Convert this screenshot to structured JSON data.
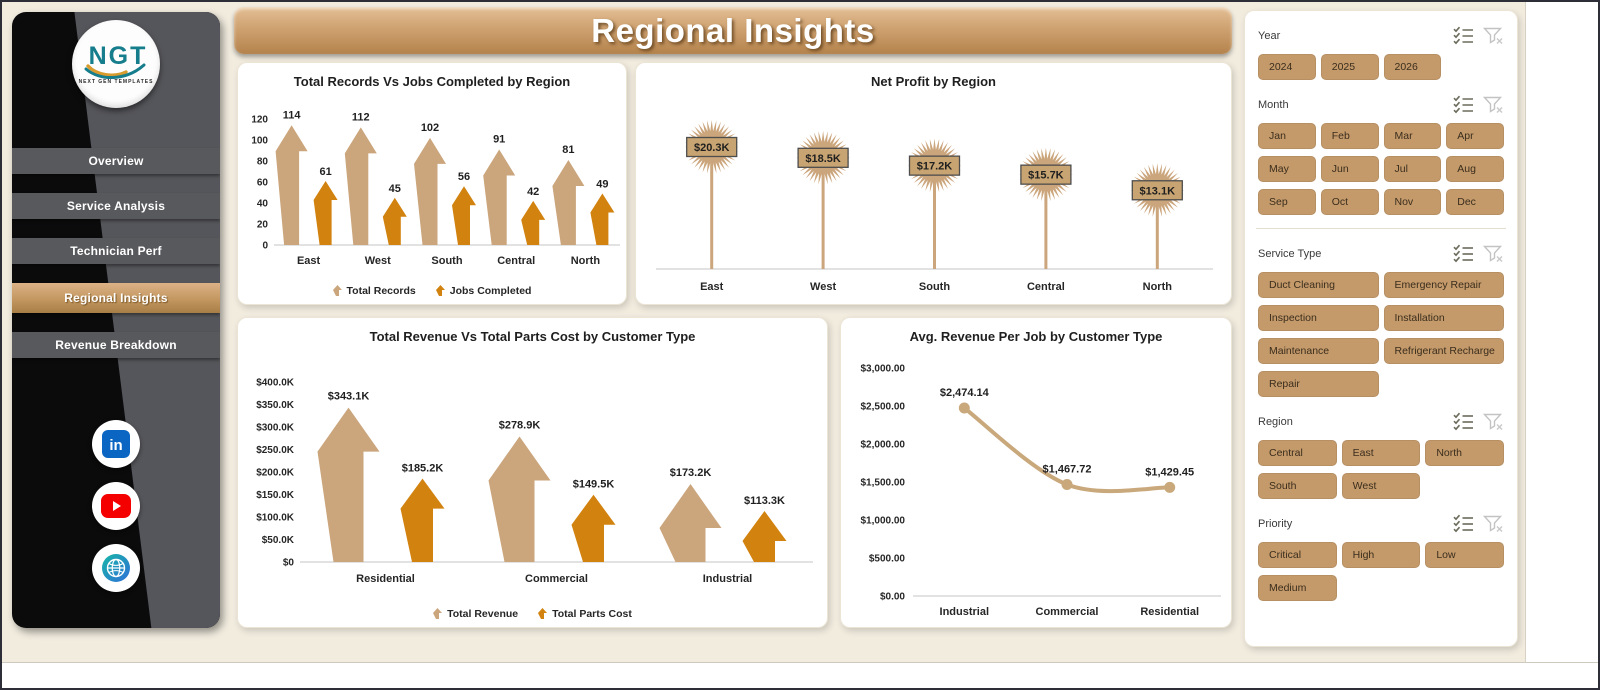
{
  "header": {
    "title": "Regional Insights"
  },
  "sidebar": {
    "logo": {
      "text": "NGT",
      "subtext": "NEXT GEN TEMPLATES"
    },
    "items": [
      {
        "label": "Overview",
        "active": false
      },
      {
        "label": "Service Analysis",
        "active": false
      },
      {
        "label": "Technician Perf",
        "active": false
      },
      {
        "label": "Regional Insights",
        "active": true
      },
      {
        "label": "Revenue Breakdown",
        "active": false
      }
    ],
    "social_icons": [
      "linkedin-icon",
      "youtube-icon",
      "globe-icon"
    ]
  },
  "colors": {
    "tan": "#CBA57C",
    "orange": "#D2820E",
    "accent_button": "#C49A6B",
    "page_bg": "#F2ECDF",
    "line": "#C9A87C"
  },
  "chart_data": [
    {
      "type": "bar",
      "title": "Total Records Vs Jobs Completed by Region",
      "categories": [
        "East",
        "West",
        "South",
        "Central",
        "North"
      ],
      "series": [
        {
          "name": "Total Records",
          "color": "#CBA57C",
          "values": [
            114,
            112,
            102,
            91,
            81
          ]
        },
        {
          "name": "Jobs Completed",
          "color": "#D2820E",
          "values": [
            61,
            45,
            56,
            42,
            49
          ]
        }
      ],
      "ylim": [
        0,
        120
      ],
      "yticks": [
        "120",
        "100",
        "80",
        "60",
        "40",
        "20",
        "0"
      ],
      "grid": false,
      "legend_position": "bottom",
      "marker_style": "upward-arrow"
    },
    {
      "type": "bar",
      "title": "Net Profit by Region",
      "categories": [
        "East",
        "West",
        "South",
        "Central",
        "North"
      ],
      "values": [
        20300,
        18500,
        17200,
        15700,
        13100
      ],
      "labels": [
        "$20.3K",
        "$18.5K",
        "$17.2K",
        "$15.7K",
        "$13.1K"
      ],
      "ylim": [
        0,
        24000
      ],
      "grid": false,
      "marker_style": "starburst-lollipop",
      "color": "#CBA57C"
    },
    {
      "type": "bar",
      "title": "Total Revenue Vs Total Parts Cost by Customer Type",
      "categories": [
        "Residential",
        "Commercial",
        "Industrial"
      ],
      "series": [
        {
          "name": "Total Revenue",
          "color": "#CBA57C",
          "values": [
            343100,
            278900,
            173200
          ],
          "labels": [
            "$343.1K",
            "$278.9K",
            "$173.2K"
          ]
        },
        {
          "name": "Total Parts Cost",
          "color": "#D2820E",
          "values": [
            185200,
            149500,
            113300
          ],
          "labels": [
            "$185.2K",
            "$149.5K",
            "$113.3K"
          ]
        }
      ],
      "ylim": [
        0,
        400000
      ],
      "yticks": [
        "$400.0K",
        "$350.0K",
        "$300.0K",
        "$250.0K",
        "$200.0K",
        "$150.0K",
        "$100.0K",
        "$50.0K",
        "$0"
      ],
      "grid": false,
      "legend_position": "bottom",
      "marker_style": "upward-arrow"
    },
    {
      "type": "line",
      "title": "Avg. Revenue Per Job by Customer Type",
      "categories": [
        "Industrial",
        "Commercial",
        "Residential"
      ],
      "values": [
        2474.14,
        1467.72,
        1429.45
      ],
      "labels": [
        "$2,474.14",
        "$1,467.72",
        "$1,429.45"
      ],
      "ylim": [
        0,
        3000
      ],
      "yticks": [
        "$3,000.00",
        "$2,500.00",
        "$2,000.00",
        "$1,500.00",
        "$1,000.00",
        "$500.00",
        "$0.00"
      ],
      "grid": false,
      "color": "#C9A87C",
      "marker": "circle",
      "smooth": true
    }
  ],
  "filters": {
    "icons": {
      "select_all": "checklist-icon",
      "clear_filter": "funnel-x-icon"
    },
    "groups": [
      {
        "label": "Year",
        "cols": 4,
        "options": [
          "2024",
          "2025",
          "2026"
        ]
      },
      {
        "label": "Month",
        "cols": 4,
        "options": [
          "Jan",
          "Feb",
          "Mar",
          "Apr",
          "May",
          "Jun",
          "Jul",
          "Aug",
          "Sep",
          "Oct",
          "Nov",
          "Dec"
        ]
      },
      {
        "label": "Service Type",
        "cols": 2,
        "options": [
          "Duct Cleaning",
          "Emergency Repair",
          "Inspection",
          "Installation",
          "Maintenance",
          "Refrigerant Recharge",
          "Repair"
        ]
      },
      {
        "label": "Region",
        "cols": 3,
        "options": [
          "Central",
          "East",
          "North",
          "South",
          "West"
        ]
      },
      {
        "label": "Priority",
        "cols": 3,
        "options": [
          "Critical",
          "High",
          "Low",
          "Medium"
        ]
      }
    ]
  }
}
